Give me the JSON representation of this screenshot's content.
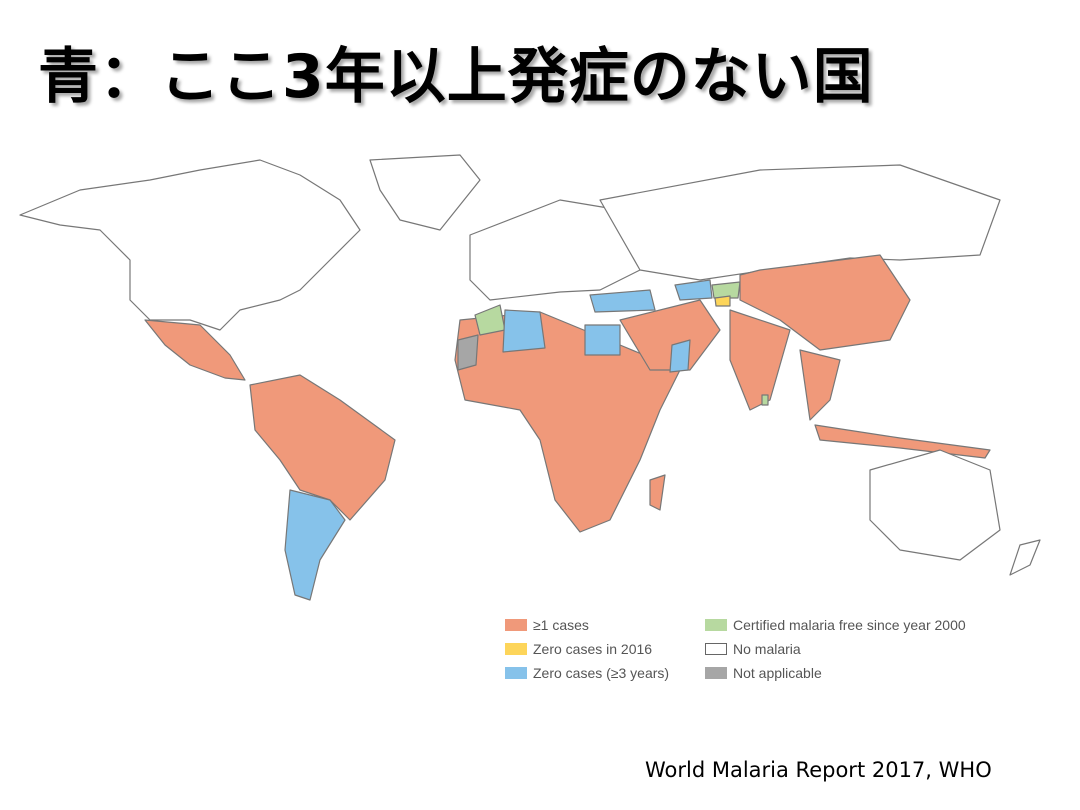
{
  "title": "青：ここ3年以上発症のない国",
  "source": "World Malaria Report 2017, WHO",
  "colors": {
    "cases": "#f0997a",
    "zero_2016": "#fdd55a",
    "zero_3yr": "#86c2ea",
    "certified": "#b7d9a0",
    "no_malaria": "#ffffff",
    "not_applicable": "#a6a6a6",
    "border": "#777777"
  },
  "legend": [
    {
      "label": "≥1 cases",
      "color": "#f0997a"
    },
    {
      "label": "Zero cases in 2016",
      "color": "#fdd55a"
    },
    {
      "label": "Zero cases (≥3 years)",
      "color": "#86c2ea"
    },
    {
      "label": "Certified malaria free since year 2000",
      "color": "#b7d9a0"
    },
    {
      "label": "No malaria",
      "color": "#ffffff"
    },
    {
      "label": "Not applicable",
      "color": "#a6a6a6"
    }
  ]
}
